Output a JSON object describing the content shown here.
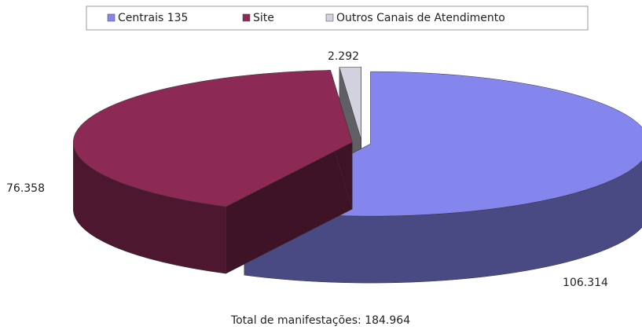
{
  "chart_data": {
    "type": "pie3d",
    "categories": [
      "Centrais 135",
      "Site",
      "Outros Canais de Atendimento"
    ],
    "values": [
      106314,
      76358,
      2292
    ],
    "value_labels": [
      "106.314",
      "76.358",
      "2.292"
    ],
    "colors": [
      "#8486ee",
      "#8c2a55",
      "#d2d2de"
    ],
    "legend": "top",
    "footer": "Total de manifestações: 184.964"
  }
}
